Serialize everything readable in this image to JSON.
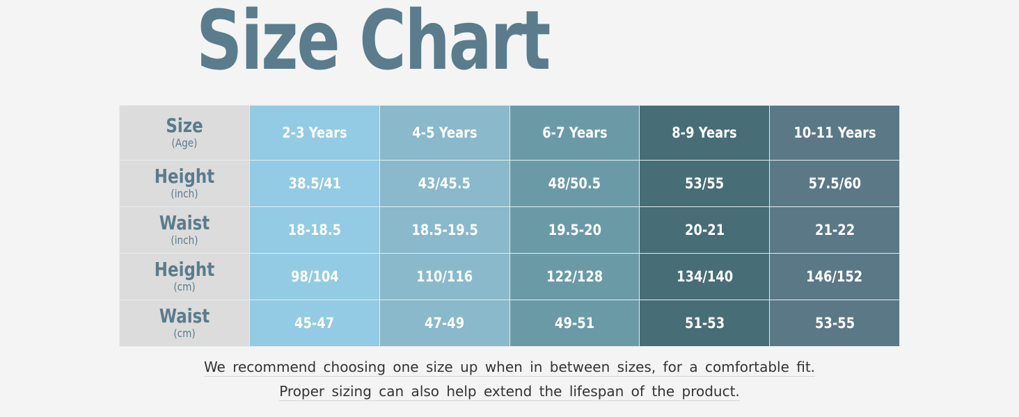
{
  "title": "Size Chart",
  "colors": {
    "title": "#5a7c8c",
    "row_header_bg": "#dcdcdc",
    "columns": [
      "#92cbe3",
      "#89b9ca",
      "#6b9aa7",
      "#476d77",
      "#5b7886"
    ]
  },
  "table": {
    "corner": {
      "label": "Size",
      "unit": "(Age)"
    },
    "columns": [
      "2-3 Years",
      "4-5 Years",
      "6-7 Years",
      "8-9 Years",
      "10-11 Years"
    ],
    "rows": [
      {
        "label": "Height",
        "unit": "(inch)",
        "values": [
          "38.5/41",
          "43/45.5",
          "48/50.5",
          "53/55",
          "57.5/60"
        ]
      },
      {
        "label": "Waist",
        "unit": "(inch)",
        "values": [
          "18-18.5",
          "18.5-19.5",
          "19.5-20",
          "20-21",
          "21-22"
        ]
      },
      {
        "label": "Height",
        "unit": "(cm)",
        "values": [
          "98/104",
          "110/116",
          "122/128",
          "134/140",
          "146/152"
        ]
      },
      {
        "label": "Waist",
        "unit": "(cm)",
        "values": [
          "45-47",
          "47-49",
          "49-51",
          "51-53",
          "53-55"
        ]
      }
    ]
  },
  "notes": [
    "We recommend choosing one size up when in between sizes, for a comfortable fit.",
    "Proper sizing can also help extend the lifespan of the product."
  ]
}
